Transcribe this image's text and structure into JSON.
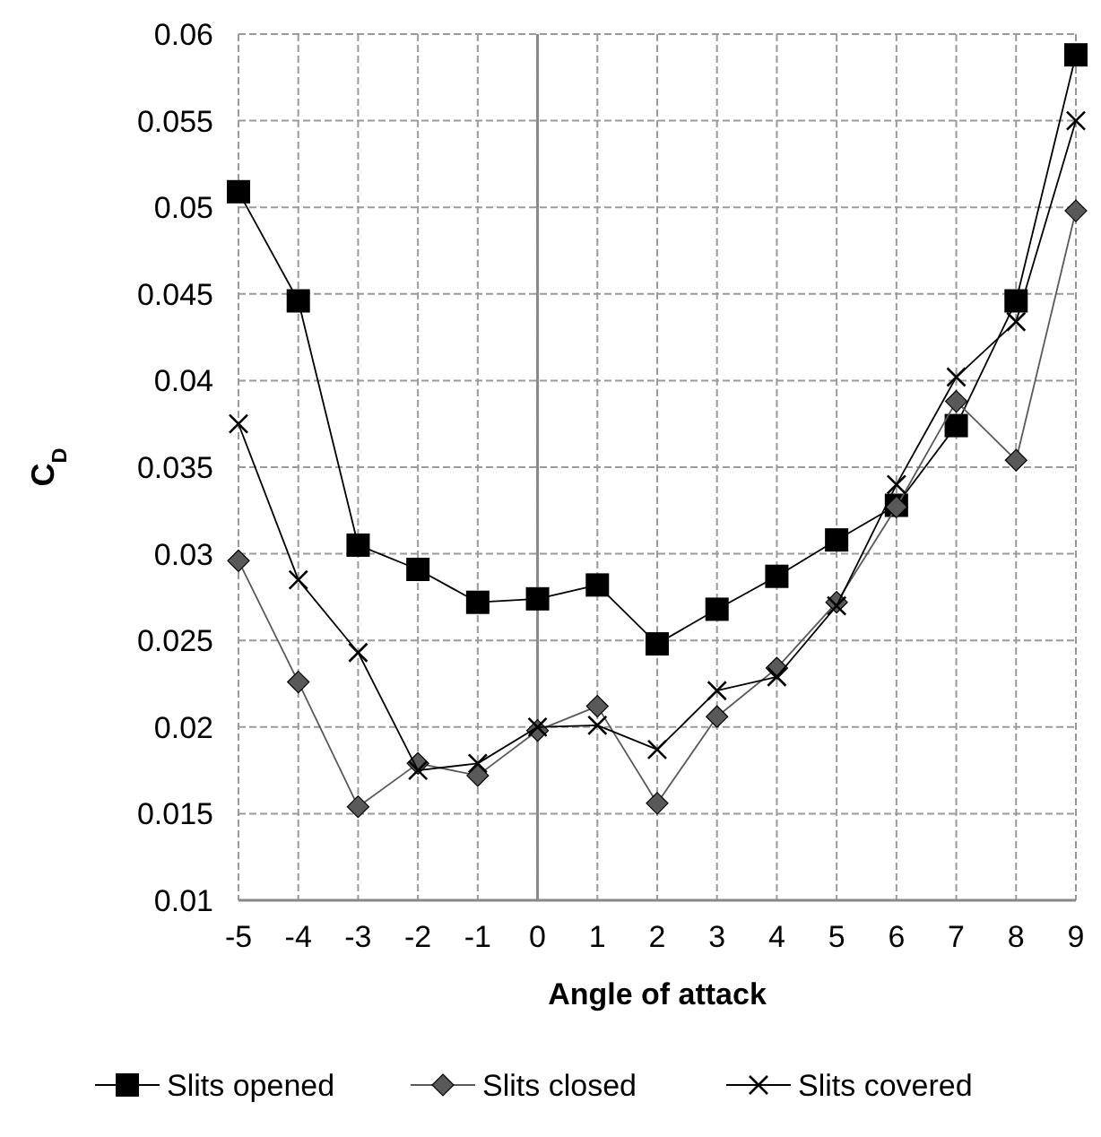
{
  "chart_data": {
    "type": "line",
    "xlabel": "Angle of attack",
    "ylabel": "C$_{D}$",
    "x": [
      -5,
      -4,
      -3,
      -2,
      -1,
      0,
      1,
      2,
      3,
      4,
      5,
      6,
      7,
      8,
      9
    ],
    "xlim": [
      -5,
      9
    ],
    "xticks": [
      -5,
      -4,
      -3,
      -2,
      -1,
      0,
      1,
      2,
      3,
      4,
      5,
      6,
      7,
      8,
      9
    ],
    "ylim": [
      0.01,
      0.06
    ],
    "yticks": [
      0.01,
      0.015,
      0.02,
      0.025,
      0.03,
      0.035,
      0.04,
      0.045,
      0.05,
      0.055,
      0.06
    ],
    "grid": true,
    "legend": "bottom",
    "line_style": "solid",
    "series": [
      {
        "name": "Slits opened",
        "color": "#000000",
        "marker": "square",
        "values": [
          0.0509,
          0.0446,
          0.0305,
          0.0291,
          0.0272,
          0.0274,
          0.0282,
          0.0248,
          0.0268,
          0.0287,
          0.0308,
          0.0328,
          0.0374,
          0.0446,
          0.0588
        ]
      },
      {
        "name": "Slits closed",
        "color": "#595959",
        "marker": "diamond",
        "values": [
          0.0296,
          0.0226,
          0.0154,
          0.0179,
          0.0172,
          0.0198,
          0.0212,
          0.0156,
          0.0206,
          0.0234,
          0.0272,
          0.0327,
          0.0388,
          0.0354,
          0.0498
        ]
      },
      {
        "name": "Slits covered",
        "color": "#000000",
        "marker": "cross",
        "values": [
          0.0375,
          0.0285,
          0.0243,
          0.0175,
          0.0179,
          0.02,
          0.0201,
          0.0187,
          0.0221,
          0.0229,
          0.027,
          0.034,
          0.0402,
          0.0434,
          0.055
        ]
      }
    ]
  }
}
